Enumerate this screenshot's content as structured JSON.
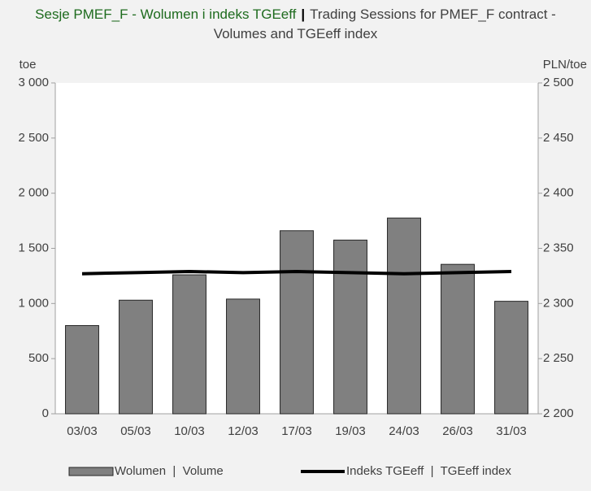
{
  "chart_data": {
    "type": "bar",
    "title": [
      "Sesje PMEF_F - Wolumen i indeks TGEeff",
      "|",
      "Trading Sessions for PMEF_F contract - Volumes and TGEeff index"
    ],
    "y_label": "toe",
    "y2_label": "PLN/toe",
    "categories": [
      "03/03",
      "05/03",
      "10/03",
      "12/03",
      "17/03",
      "19/03",
      "24/03",
      "26/03",
      "31/03"
    ],
    "series": [
      {
        "name": "Wolumen  |  Volume",
        "type": "bar",
        "color": "#808080",
        "values": [
          800,
          1030,
          1260,
          1040,
          1660,
          1575,
          1775,
          1355,
          1020
        ]
      },
      {
        "name": "Indeks TGEeff  |  TGEeff index",
        "type": "line",
        "axis": "y2",
        "color": "#000000",
        "values": [
          2327,
          2328,
          2329,
          2328,
          2329,
          2328,
          2327,
          2328,
          2329
        ]
      }
    ],
    "ylim": [
      0,
      3000
    ],
    "yticks": [
      0,
      500,
      {
        "value": 1000,
        "label": "1 000"
      },
      {
        "value": 1500,
        "label": "1 500"
      },
      {
        "value": 2000,
        "label": "2 000"
      },
      {
        "value": 2500,
        "label": "2 500"
      },
      {
        "value": 3000,
        "label": "3 000"
      }
    ],
    "y2lim": [
      2200,
      2500
    ],
    "y2ticks": [
      {
        "value": 2200,
        "label": "2 200"
      },
      {
        "value": 2250,
        "label": "2 250"
      },
      {
        "value": 2300,
        "label": "2 300"
      },
      {
        "value": 2350,
        "label": "2 350"
      },
      {
        "value": 2400,
        "label": "2 400"
      },
      {
        "value": 2450,
        "label": "2 450"
      },
      {
        "value": 2500,
        "label": "2 500"
      }
    ],
    "grid": false,
    "legend": "bottom"
  }
}
